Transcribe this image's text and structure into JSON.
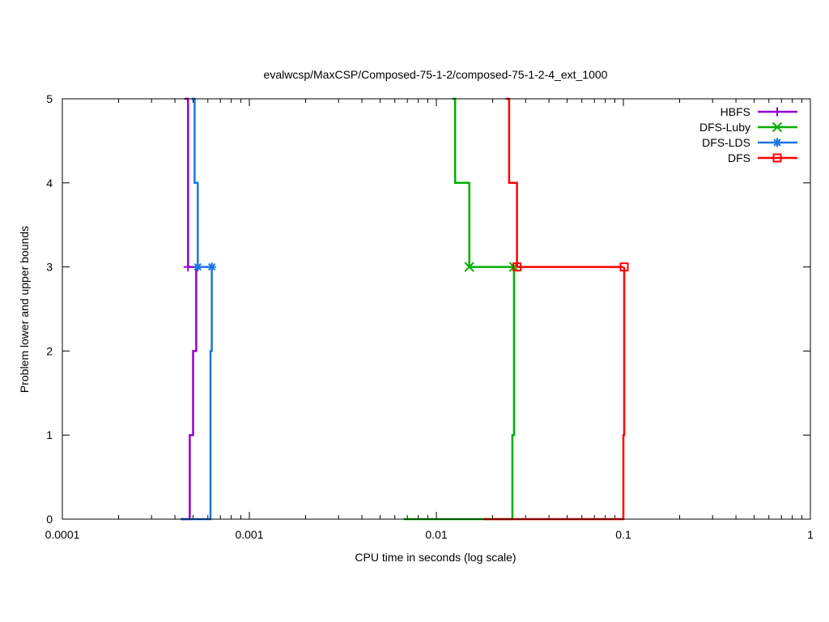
{
  "chart_data": {
    "type": "line",
    "title": "evalwcsp/MaxCSP/Composed-75-1-2/composed-75-1-2-4_ext_1000",
    "xlabel": "CPU time in seconds (log scale)",
    "ylabel": "Problem lower and upper bounds",
    "xscale": "log",
    "xlim": [
      0.0001,
      1
    ],
    "ylim": [
      0,
      5
    ],
    "xticks": [
      {
        "value": 0.0001,
        "label": "0.0001"
      },
      {
        "value": 0.001,
        "label": "0.001"
      },
      {
        "value": 0.01,
        "label": "0.01"
      },
      {
        "value": 0.1,
        "label": "0.1"
      },
      {
        "value": 1,
        "label": "1"
      }
    ],
    "yticks": [
      {
        "value": 0,
        "label": "0"
      },
      {
        "value": 1,
        "label": "1"
      },
      {
        "value": 2,
        "label": "2"
      },
      {
        "value": 3,
        "label": "3"
      },
      {
        "value": 4,
        "label": "4"
      },
      {
        "value": 5,
        "label": "5"
      }
    ],
    "legend_position": "top-right",
    "grid": false,
    "series": [
      {
        "name": "HBFS",
        "color": "#9400d3",
        "marker": "plus",
        "upper": [
          [
            0.00045,
            5
          ],
          [
            0.00047,
            5
          ],
          [
            0.00047,
            3
          ],
          [
            0.00047,
            3
          ]
        ],
        "lower": [
          [
            0.00043,
            0
          ],
          [
            0.00048,
            0
          ],
          [
            0.00048,
            1
          ],
          [
            0.0005,
            1
          ],
          [
            0.0005,
            2
          ],
          [
            0.00052,
            2
          ],
          [
            0.00052,
            3
          ],
          [
            0.00047,
            3
          ]
        ],
        "marker_points": [
          [
            0.00047,
            3
          ]
        ]
      },
      {
        "name": "DFS-Luby",
        "color": "#00b000",
        "marker": "x",
        "upper": [
          [
            0.0122,
            5
          ],
          [
            0.0126,
            5
          ],
          [
            0.0126,
            4
          ],
          [
            0.015,
            4
          ],
          [
            0.015,
            3
          ],
          [
            0.026,
            3
          ]
        ],
        "lower": [
          [
            0.0067,
            0
          ],
          [
            0.0255,
            0
          ],
          [
            0.0255,
            1
          ],
          [
            0.026,
            1
          ],
          [
            0.026,
            3
          ]
        ],
        "marker_points": [
          [
            0.015,
            3
          ],
          [
            0.026,
            3
          ]
        ]
      },
      {
        "name": "DFS-LDS",
        "color": "#1a75e0",
        "marker": "star",
        "upper": [
          [
            0.00049,
            5
          ],
          [
            0.00051,
            5
          ],
          [
            0.00051,
            4
          ],
          [
            0.00053,
            4
          ],
          [
            0.00053,
            3
          ],
          [
            0.00063,
            3
          ]
        ],
        "lower": [
          [
            0.00043,
            0
          ],
          [
            0.00062,
            0
          ],
          [
            0.00062,
            2
          ],
          [
            0.00063,
            2
          ],
          [
            0.00063,
            3
          ]
        ],
        "marker_points": [
          [
            0.00053,
            3
          ],
          [
            0.00063,
            3
          ]
        ]
      },
      {
        "name": "DFS",
        "color": "#ff0000",
        "marker": "square",
        "upper": [
          [
            0.0235,
            5
          ],
          [
            0.0245,
            5
          ],
          [
            0.0245,
            4
          ],
          [
            0.027,
            4
          ],
          [
            0.027,
            3
          ],
          [
            0.1,
            3
          ]
        ],
        "lower": [
          [
            0.018,
            0
          ],
          [
            0.1,
            0
          ],
          [
            0.1,
            1
          ],
          [
            0.101,
            1
          ],
          [
            0.101,
            3
          ]
        ],
        "marker_points": [
          [
            0.027,
            3
          ],
          [
            0.101,
            3
          ]
        ]
      }
    ]
  }
}
